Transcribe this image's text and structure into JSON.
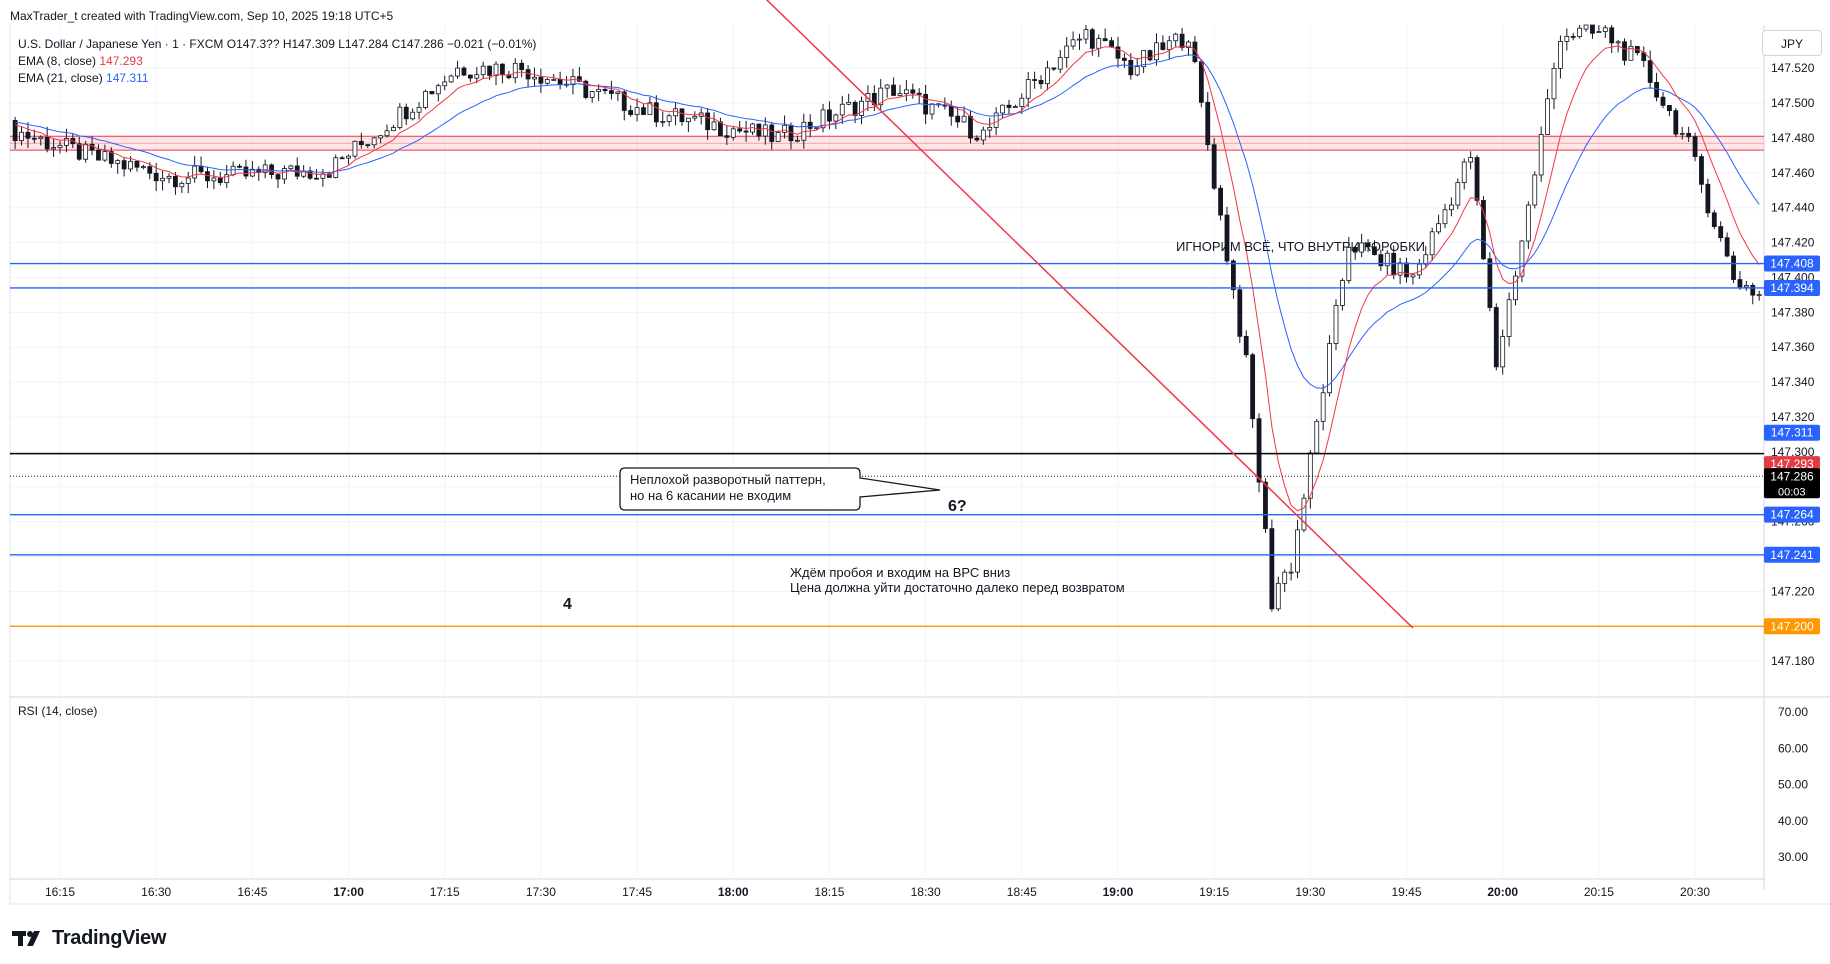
{
  "header": {
    "credit": "MaxTrader_t created with TradingView.com, Sep 10, 2025 19:18 UTC+5"
  },
  "legend": {
    "symbol": "U.S. Dollar / Japanese Yen · 1 · FXCM",
    "ohlc": "O147.3?? H147.309 L147.284 C147.286 −0.021 (−0.01%)",
    "ema8_label": "EMA (8, close)",
    "ema8_value": "147.293",
    "ema21_label": "EMA (21, close)",
    "ema21_value": "147.311",
    "rsi_label": "RSI (14, close)"
  },
  "currency_button": "JPY",
  "brand": "TradingView",
  "chart_data": {
    "type": "candlestick",
    "symbol": "USDJPY 1m",
    "y_axis": {
      "ticks": [
        "147.520",
        "147.500",
        "147.480",
        "147.460",
        "147.440",
        "147.420",
        "147.400",
        "147.380",
        "147.360",
        "147.340",
        "147.320",
        "147.300",
        "147.280",
        "147.260",
        "147.240",
        "147.220",
        "147.200",
        "147.180"
      ],
      "range": [
        147.17,
        147.54
      ]
    },
    "rsi_axis": {
      "ticks": [
        "70.00",
        "60.00",
        "50.00",
        "40.00",
        "30.00"
      ]
    },
    "x_axis": {
      "ticks": [
        "16:15",
        "16:30",
        "16:45",
        "17:00",
        "17:15",
        "17:30",
        "17:45",
        "18:00",
        "18:15",
        "18:30",
        "18:45",
        "19:00",
        "19:15",
        "19:30",
        "19:45",
        "20:00",
        "20:15",
        "20:30"
      ],
      "bold": [
        "17:00",
        "18:00",
        "19:00",
        "20:00"
      ]
    },
    "price_labels": [
      {
        "text": "147.408",
        "value": 147.408,
        "color": "#2962ff"
      },
      {
        "text": "147.394",
        "value": 147.394,
        "color": "#2962ff"
      },
      {
        "text": "147.311",
        "value": 147.311,
        "color": "#2962ff"
      },
      {
        "text": "147.293",
        "value": 147.293,
        "color": "#e13b46"
      },
      {
        "text": "147.286",
        "value": 147.286,
        "color": "#000000",
        "sub": "00:03"
      },
      {
        "text": "147.264",
        "value": 147.264,
        "color": "#2962ff"
      },
      {
        "text": "147.241",
        "value": 147.241,
        "color": "#2962ff"
      },
      {
        "text": "147.200",
        "value": 147.2,
        "color": "#ff9800"
      }
    ],
    "horizontal_levels": [
      {
        "value": 147.408,
        "color": "#2962ff"
      },
      {
        "value": 147.394,
        "color": "#2962ff"
      },
      {
        "value": 147.299,
        "color": "#000000"
      },
      {
        "value": 147.264,
        "color": "#2962ff"
      },
      {
        "value": 147.241,
        "color": "#2962ff"
      },
      {
        "value": 147.2,
        "color": "#ff9800"
      }
    ],
    "resistance_zone": {
      "from": 147.473,
      "to": 147.481,
      "color": "#f23645"
    },
    "trendline": {
      "from": {
        "time": "18:05",
        "value": 147.56
      },
      "to": {
        "time": "19:46",
        "value": 147.199
      },
      "color": "#f23645"
    },
    "annotations": [
      {
        "text": "ИГНОРИМ ВСЁ, ЧТО ВНУТРИ КОРОБКИ"
      },
      {
        "text": "4"
      },
      {
        "text": "6?"
      },
      {
        "text": "Неплохой разворотный паттерн,"
      },
      {
        "text": "но на 6 касании не входим"
      },
      {
        "text": "Ждём пробоя и входим на ВРС вниз"
      },
      {
        "text": "Цена должна уйти достаточно далеко перед возвратом"
      }
    ]
  }
}
